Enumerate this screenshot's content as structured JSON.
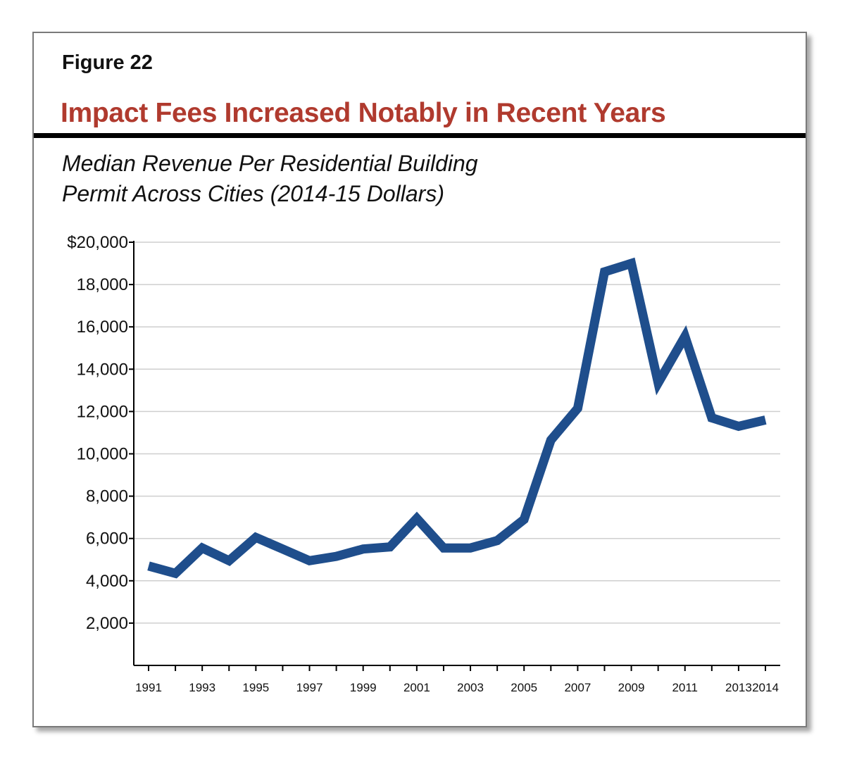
{
  "figure": {
    "label": "Figure 22",
    "title": "Impact Fees Increased Notably in Recent Years",
    "subtitle_line1": "Median Revenue Per Residential Building",
    "subtitle_line2": "Permit Across Cities (2014-15 Dollars)"
  },
  "colors": {
    "title": "#b03a2e",
    "line": "#1f4e8c",
    "grid": "#cfcfcf",
    "axis": "#000000"
  },
  "chart_data": {
    "type": "line",
    "title": "Impact Fees Increased Notably in Recent Years",
    "subtitle": "Median Revenue Per Residential Building Permit Across Cities (2014-15 Dollars)",
    "xlabel": "",
    "ylabel": "",
    "ylim": [
      0,
      20000
    ],
    "y_ticks": [
      2000,
      4000,
      6000,
      8000,
      10000,
      12000,
      14000,
      16000,
      18000,
      20000
    ],
    "y_tick_labels": [
      "2,000",
      "4,000",
      "6,000",
      "8,000",
      "10,000",
      "12,000",
      "14,000",
      "16,000",
      "18,000",
      "$20,000"
    ],
    "x_tick_labels": [
      "1991",
      "1993",
      "1995",
      "1997",
      "1999",
      "2001",
      "2003",
      "2005",
      "2007",
      "2009",
      "2011",
      "2013",
      "2014"
    ],
    "grid": true,
    "series": [
      {
        "name": "Median Revenue Per Residential Building Permit",
        "x": [
          1991,
          1992,
          1993,
          1994,
          1995,
          1996,
          1997,
          1998,
          1999,
          2000,
          2001,
          2002,
          2003,
          2004,
          2005,
          2006,
          2007,
          2008,
          2009,
          2010,
          2011,
          2012,
          2013,
          2014
        ],
        "values": [
          4700,
          4350,
          5550,
          4950,
          6050,
          5500,
          4950,
          5150,
          5500,
          5600,
          6950,
          5550,
          5550,
          5900,
          6900,
          10650,
          12150,
          18600,
          19000,
          13350,
          15550,
          11700,
          11300,
          11600
        ]
      }
    ]
  }
}
